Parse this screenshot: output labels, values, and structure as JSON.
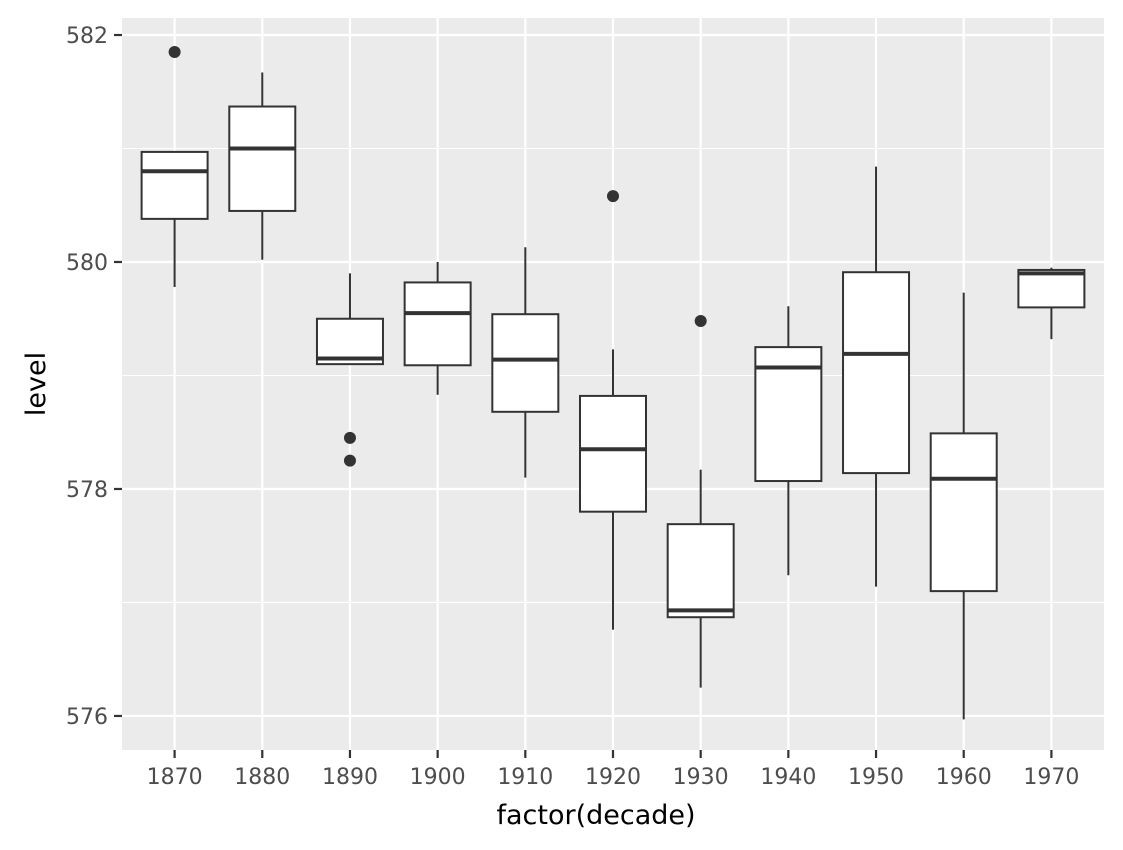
{
  "chart_data": {
    "type": "boxplot",
    "xlabel": "factor(decade)",
    "ylabel": "level",
    "ylim": [
      575.7,
      582.15
    ],
    "y_ticks": [
      576,
      578,
      580,
      582
    ],
    "grid": true,
    "categories": [
      "1870",
      "1880",
      "1890",
      "1900",
      "1910",
      "1920",
      "1930",
      "1940",
      "1950",
      "1960",
      "1970"
    ],
    "boxes": [
      {
        "category": "1870",
        "lower_whisker": 579.78,
        "q1": 580.38,
        "median": 580.8,
        "q3": 580.97,
        "upper_whisker": 580.97,
        "outliers": [
          581.85
        ]
      },
      {
        "category": "1880",
        "lower_whisker": 580.02,
        "q1": 580.45,
        "median": 581.0,
        "q3": 581.37,
        "upper_whisker": 581.67,
        "outliers": []
      },
      {
        "category": "1890",
        "lower_whisker": 579.1,
        "q1": 579.1,
        "median": 579.15,
        "q3": 579.5,
        "upper_whisker": 579.9,
        "outliers": [
          578.45,
          578.25
        ]
      },
      {
        "category": "1900",
        "lower_whisker": 578.83,
        "q1": 579.09,
        "median": 579.55,
        "q3": 579.82,
        "upper_whisker": 580.0,
        "outliers": []
      },
      {
        "category": "1910",
        "lower_whisker": 578.1,
        "q1": 578.68,
        "median": 579.14,
        "q3": 579.54,
        "upper_whisker": 580.13,
        "outliers": []
      },
      {
        "category": "1920",
        "lower_whisker": 576.76,
        "q1": 577.8,
        "median": 578.35,
        "q3": 578.82,
        "upper_whisker": 579.23,
        "outliers": [
          580.58
        ]
      },
      {
        "category": "1930",
        "lower_whisker": 576.25,
        "q1": 576.87,
        "median": 576.93,
        "q3": 577.69,
        "upper_whisker": 578.17,
        "outliers": [
          579.48
        ]
      },
      {
        "category": "1940",
        "lower_whisker": 577.24,
        "q1": 578.07,
        "median": 579.07,
        "q3": 579.25,
        "upper_whisker": 579.61,
        "outliers": []
      },
      {
        "category": "1950",
        "lower_whisker": 577.14,
        "q1": 578.14,
        "median": 579.19,
        "q3": 579.91,
        "upper_whisker": 580.84,
        "outliers": []
      },
      {
        "category": "1960",
        "lower_whisker": 575.97,
        "q1": 577.1,
        "median": 578.09,
        "q3": 578.49,
        "upper_whisker": 579.73,
        "outliers": []
      },
      {
        "category": "1970",
        "lower_whisker": 579.32,
        "q1": 579.6,
        "median": 579.9,
        "q3": 579.93,
        "upper_whisker": 579.95,
        "outliers": []
      }
    ],
    "colors": {
      "panel_background": "#ebebeb",
      "grid": "#ffffff",
      "box_fill": "#ffffff",
      "box_line": "#333333",
      "text": "#4d4d4d"
    }
  }
}
